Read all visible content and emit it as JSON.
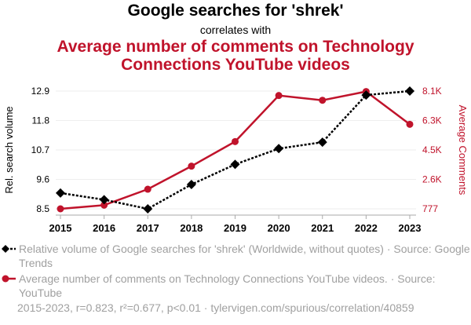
{
  "chart_data": {
    "type": "line",
    "title": "Google searches for 'shrek'",
    "subtitle": "correlates with",
    "title2": "Average number of comments on Technology Connections YouTube videos",
    "x": [
      2015,
      2016,
      2017,
      2018,
      2019,
      2020,
      2021,
      2022,
      2023
    ],
    "x_tick_labels": [
      "2015",
      "2016",
      "2017",
      "2018",
      "2019",
      "2020",
      "2021",
      "2022",
      "2023"
    ],
    "ylabel_left": "Rel. search volume",
    "ylabel_right": "Average Comments",
    "ylim_left": [
      8.5,
      12.9
    ],
    "ylim_right": [
      777,
      8100
    ],
    "left_tick_labels": [
      "8.5",
      "9.6",
      "10.7",
      "11.8",
      "12.9"
    ],
    "right_tick_labels": [
      "777",
      "2.6K",
      "4.5K",
      "6.3K",
      "8.1K"
    ],
    "grid": true,
    "series": [
      {
        "name": "Relative volume of Google searches for 'shrek' (Worldwide, without quotes) · Source: Google Trends",
        "axis": "left",
        "color": "#000000",
        "style": "dotted",
        "marker": "diamond",
        "values": [
          9.09,
          8.84,
          8.5,
          9.41,
          10.16,
          10.75,
          10.99,
          12.75,
          12.9
        ]
      },
      {
        "name": "Average number of comments on Technology Connections YouTube videos. · Source: YouTube",
        "axis": "right",
        "color": "#c0132b",
        "style": "solid",
        "marker": "circle",
        "values": [
          777,
          1005,
          1997,
          3430,
          4959,
          7823,
          7529,
          8070,
          6033
        ]
      }
    ],
    "footer": "2015-2023, r=0.823, r²=0.677, p<0.01 · tylervigen.com/spurious/correlation/40859"
  }
}
